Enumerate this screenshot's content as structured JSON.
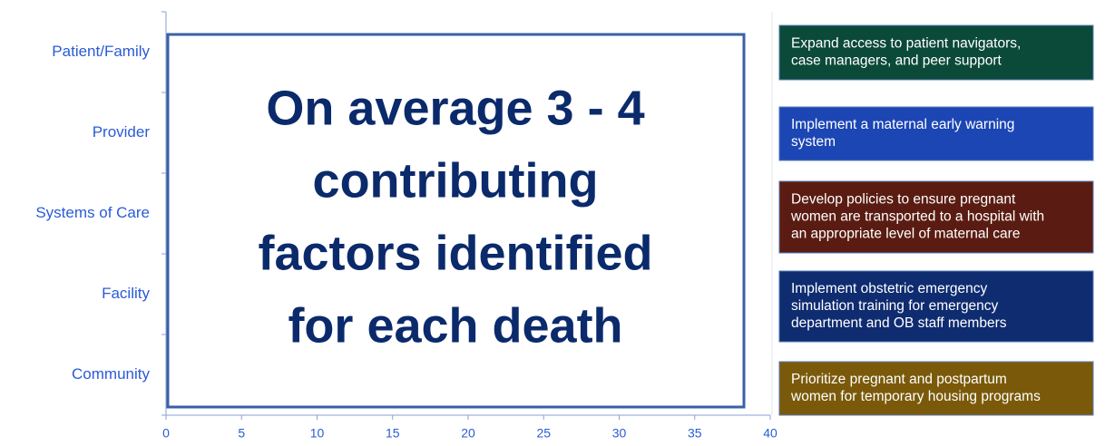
{
  "chart_data": {
    "type": "bar",
    "orientation": "horizontal",
    "categories": [
      "Patient/Family",
      "Provider",
      "Systems of Care",
      "Facility",
      "Community"
    ],
    "xlim": [
      0,
      40
    ],
    "xticks": [
      0,
      5,
      10,
      15,
      20,
      25,
      30,
      35,
      40
    ],
    "annotation_lines": [
      "On average 3 - 4",
      "contributing",
      "factors identified",
      "for each death"
    ]
  },
  "recommendations": [
    {
      "lines": [
        "Expand access to patient navigators,",
        "case managers, and peer support"
      ],
      "color": "#0b4a38"
    },
    {
      "lines": [
        "Implement a maternal early warning",
        "system"
      ],
      "color": "#1c46b4"
    },
    {
      "lines": [
        "Develop policies to ensure pregnant",
        "women are transported to a hospital with",
        "an appropriate level of maternal care"
      ],
      "color": "#5a1c12"
    },
    {
      "lines": [
        "Implement obstetric emergency",
        "simulation training for emergency",
        "department and OB staff members"
      ],
      "color": "#0f2c70"
    },
    {
      "lines": [
        "Prioritize pregnant and postpartum",
        "women for temporary housing programs"
      ],
      "color": "#7a5a0a"
    }
  ]
}
